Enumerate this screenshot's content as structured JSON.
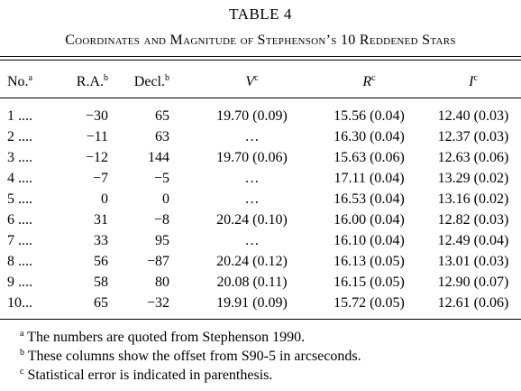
{
  "table_label": "TABLE 4",
  "caption": "Coordinates and Magnitude of Stephenson’s 10 Reddened Stars",
  "table": {
    "headers": [
      {
        "text": "No.",
        "note": "a"
      },
      {
        "text": "R.A.",
        "note": "b"
      },
      {
        "text": "Decl.",
        "note": "b"
      },
      {
        "text": "V",
        "note": "c"
      },
      {
        "text": "R",
        "note": "c"
      },
      {
        "text": "I",
        "note": "c"
      }
    ],
    "rows": [
      [
        "1 ....",
        "−30",
        "65",
        "19.70 (0.09)",
        "15.56 (0.04)",
        "12.40 (0.03)"
      ],
      [
        "2 ....",
        "−11",
        "63",
        "…",
        "16.30 (0.04)",
        "12.37 (0.03)"
      ],
      [
        "3 ....",
        "−12",
        "144",
        "19.70 (0.06)",
        "15.63 (0.06)",
        "12.63 (0.06)"
      ],
      [
        "4 ....",
        "−7",
        "−5",
        "…",
        "17.11 (0.04)",
        "13.29 (0.02)"
      ],
      [
        "5 ....",
        "0",
        "0",
        "…",
        "16.53 (0.04)",
        "13.16 (0.02)"
      ],
      [
        "6 ....",
        "31",
        "−8",
        "20.24 (0.10)",
        "16.00 (0.04)",
        "12.82 (0.03)"
      ],
      [
        "7 ....",
        "33",
        "95",
        "…",
        "16.10 (0.04)",
        "12.49 (0.04)"
      ],
      [
        "8 ....",
        "56",
        "−87",
        "20.24 (0.12)",
        "16.13 (0.05)",
        "13.01 (0.03)"
      ],
      [
        "9 ....",
        "58",
        "80",
        "20.08 (0.11)",
        "16.15 (0.05)",
        "12.90 (0.07)"
      ],
      [
        "10...",
        "65",
        "−32",
        "19.91 (0.09)",
        "15.72 (0.05)",
        "12.61 (0.06)"
      ]
    ]
  },
  "footnotes": [
    {
      "mark": "a",
      "text": "The numbers are quoted from Stephenson 1990."
    },
    {
      "mark": "b",
      "text": "These columns show the offset from S90-5 in arcseconds."
    },
    {
      "mark": "c",
      "text": "Statistical error is indicated in parenthesis."
    }
  ]
}
